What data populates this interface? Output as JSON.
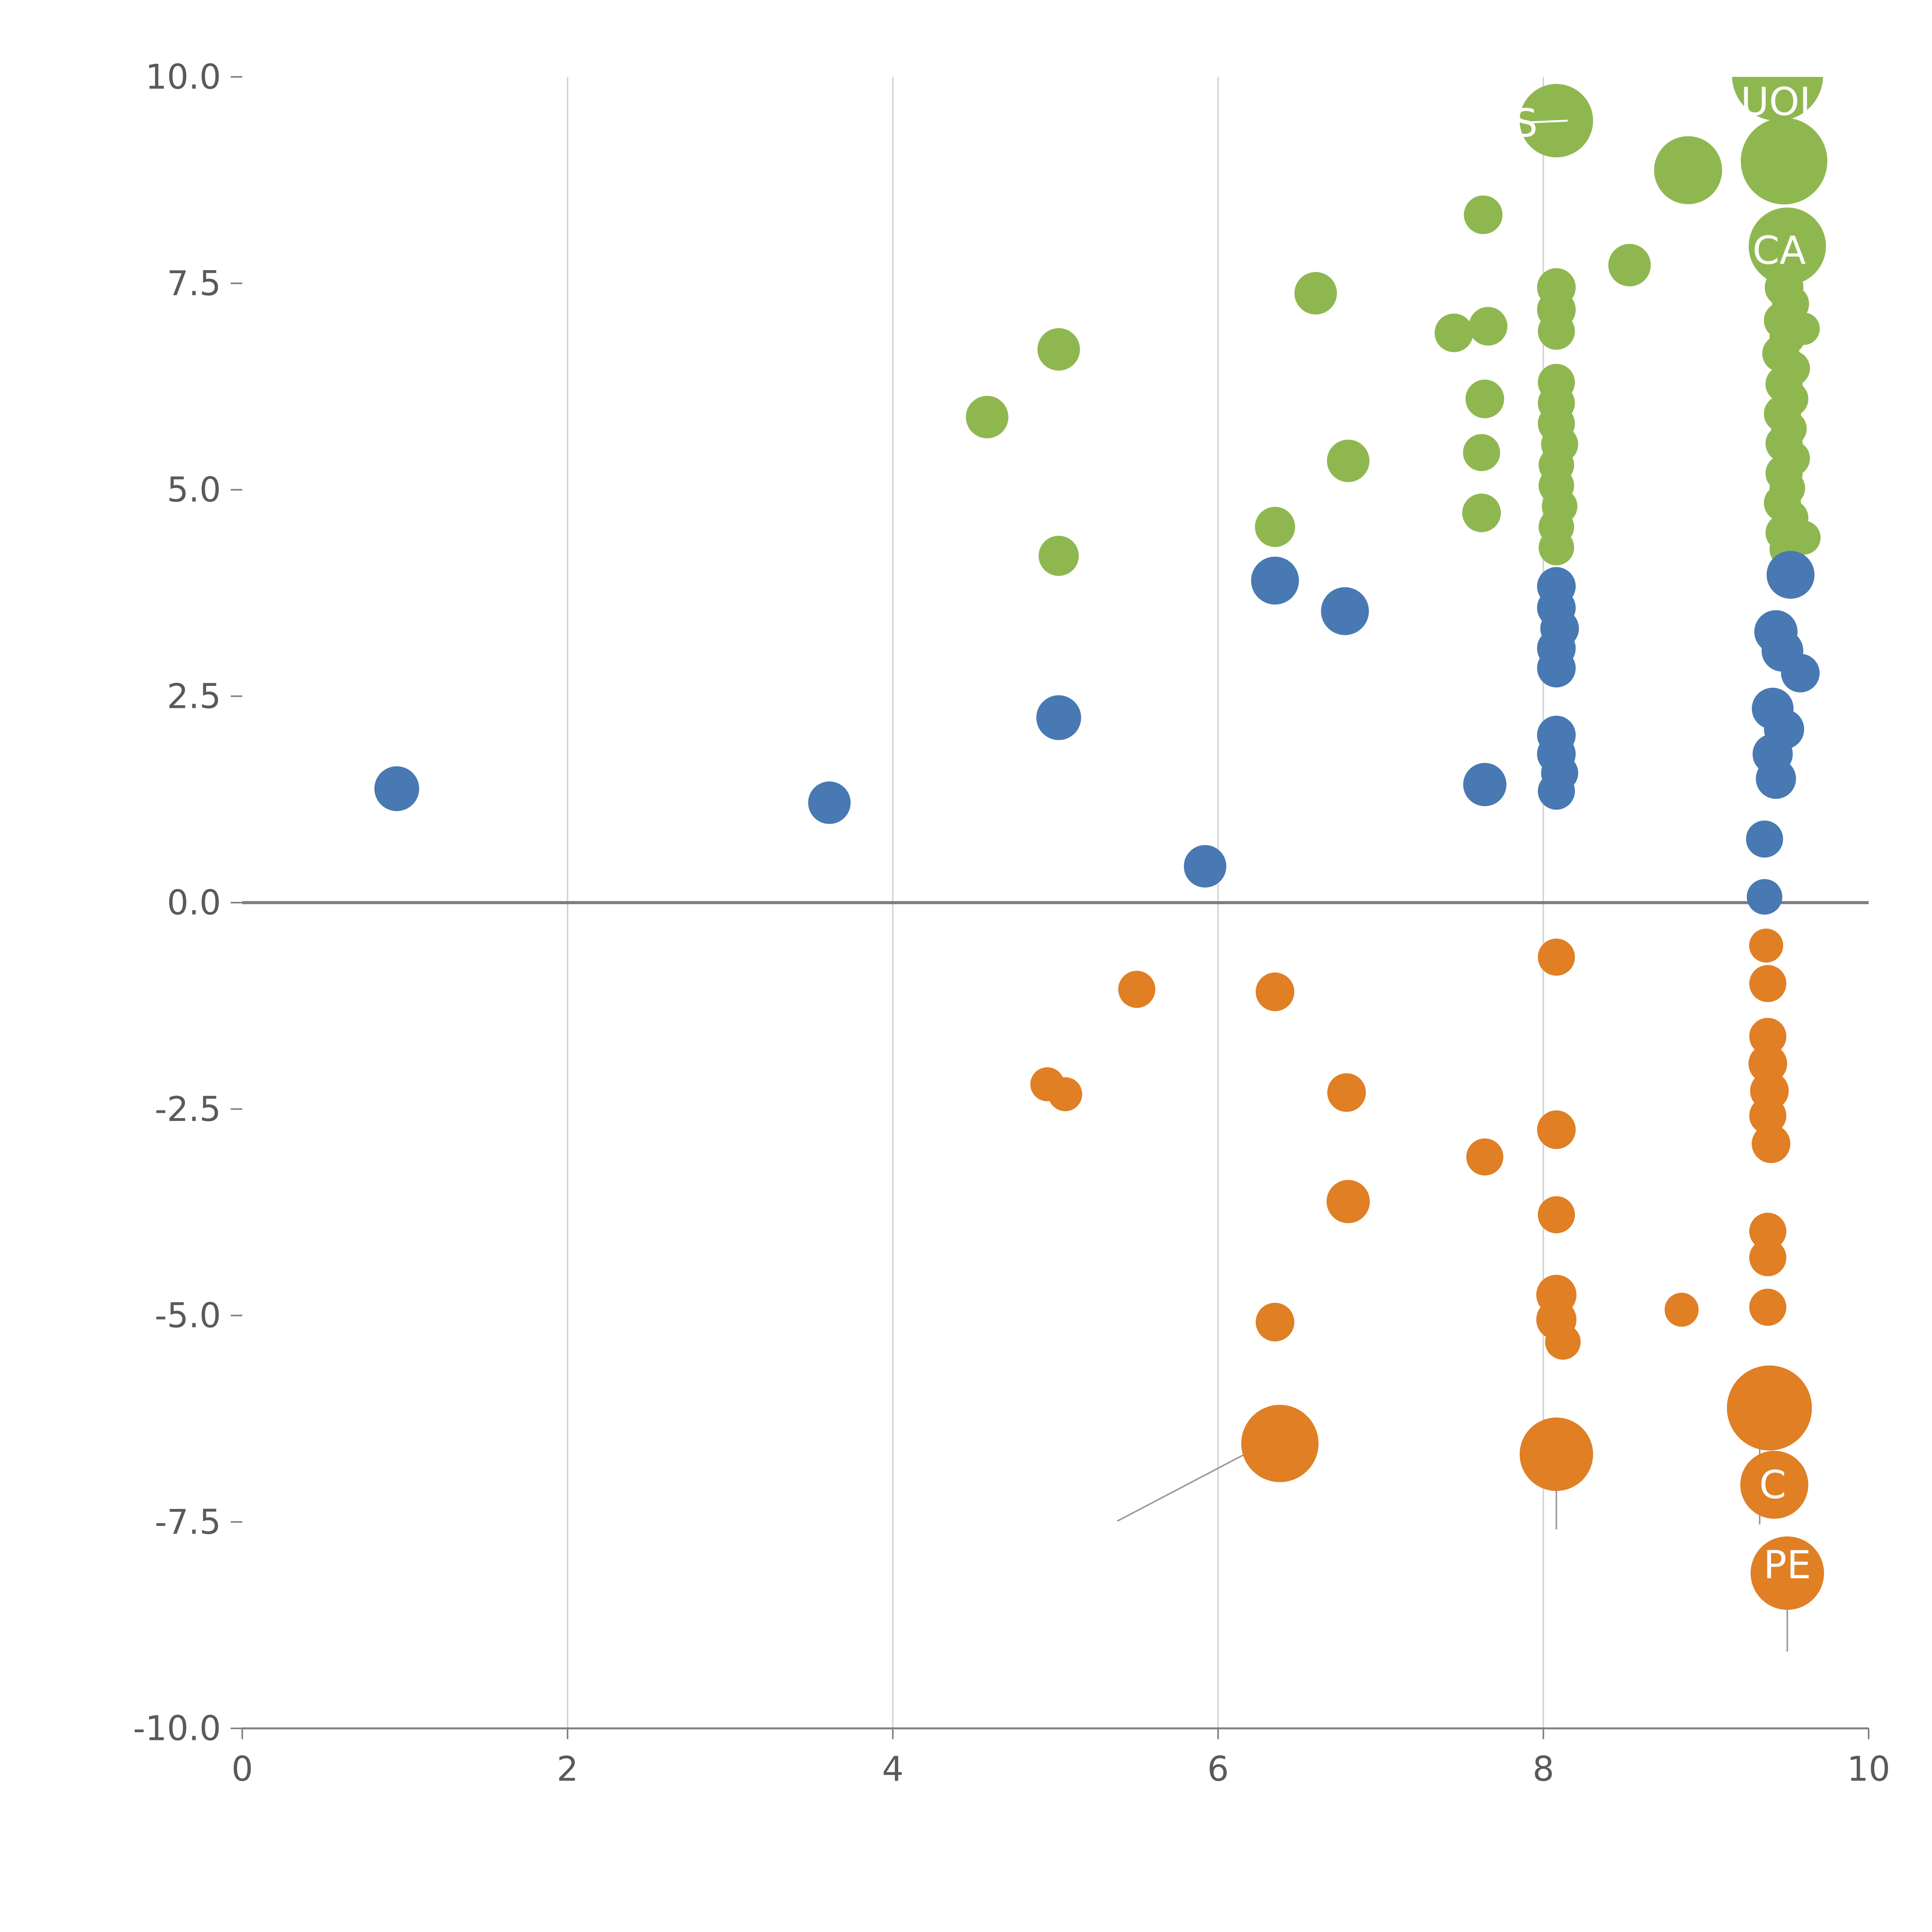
{
  "chart_data": {
    "type": "scatter",
    "title": "",
    "xlabel": "",
    "ylabel": "",
    "xlim": [
      0,
      10
    ],
    "ylim": [
      -10,
      10
    ],
    "grid": "vertical-only",
    "legend": null,
    "x_ticks": [
      {
        "v": 0,
        "label": "0"
      },
      {
        "v": 2,
        "label": "2"
      },
      {
        "v": 4,
        "label": "4"
      },
      {
        "v": 6,
        "label": "6"
      },
      {
        "v": 8,
        "label": "8"
      },
      {
        "v": 10,
        "label": "10"
      }
    ],
    "y_ticks": [
      {
        "v": -10.0,
        "label": "-10.0"
      },
      {
        "v": -7.5,
        "label": "-7.5"
      },
      {
        "v": -5.0,
        "label": "-5.0"
      },
      {
        "v": -2.5,
        "label": "-2.5"
      },
      {
        "v": 0.0,
        "label": "0.0"
      },
      {
        "v": 2.5,
        "label": "2.5"
      },
      {
        "v": 5.0,
        "label": "5.0"
      },
      {
        "v": 7.5,
        "label": "7.5"
      },
      {
        "v": 10.0,
        "label": "10.0"
      }
    ],
    "x_gridlines": [
      2,
      4,
      6,
      8
    ],
    "zero_line_y": 0,
    "colors": {
      "green": "#8fb750",
      "blue": "#4879b2",
      "orange": "#e07f24",
      "gridline": "#d0d0d0",
      "axis": "#7f7f7f",
      "zero_line": "#7f7f7f",
      "tick_text": "#5a5a5a",
      "leader_line": "#9a9a9a",
      "point_label": "#ffffff"
    },
    "point_format": [
      "x",
      "y",
      "radius_px"
    ],
    "series": [
      {
        "name": "series-green",
        "color": "#8fb750",
        "points": [
          [
            8.08,
            9.47,
            95
          ],
          [
            9.44,
            10.02,
            118
          ],
          [
            9.48,
            8.98,
            112
          ],
          [
            8.89,
            8.87,
            88
          ],
          [
            7.63,
            8.33,
            50
          ],
          [
            9.5,
            7.95,
            100
          ],
          [
            8.53,
            7.72,
            55
          ],
          [
            6.6,
            7.38,
            55
          ],
          [
            8.08,
            7.45,
            50
          ],
          [
            8.08,
            7.18,
            50
          ],
          [
            8.08,
            6.92,
            48
          ],
          [
            7.45,
            6.9,
            50
          ],
          [
            7.66,
            6.98,
            50
          ],
          [
            5.02,
            6.7,
            55
          ],
          [
            4.58,
            5.88,
            55
          ],
          [
            7.64,
            6.1,
            50
          ],
          [
            7.62,
            5.45,
            48
          ],
          [
            6.8,
            5.35,
            55
          ],
          [
            5.02,
            4.2,
            52
          ],
          [
            6.35,
            4.55,
            52
          ],
          [
            7.62,
            4.72,
            50
          ],
          [
            8.08,
            6.3,
            48
          ],
          [
            8.08,
            6.05,
            48
          ],
          [
            8.08,
            5.8,
            48
          ],
          [
            8.1,
            5.55,
            48
          ],
          [
            8.08,
            5.3,
            46
          ],
          [
            8.08,
            5.05,
            46
          ],
          [
            8.1,
            4.8,
            46
          ],
          [
            8.08,
            4.55,
            46
          ],
          [
            8.08,
            4.3,
            46
          ],
          [
            9.48,
            7.45,
            50
          ],
          [
            9.52,
            7.25,
            48
          ],
          [
            9.47,
            7.05,
            48
          ],
          [
            9.6,
            6.95,
            42
          ],
          [
            9.5,
            6.85,
            46
          ],
          [
            9.46,
            6.65,
            48
          ],
          [
            9.53,
            6.47,
            46
          ],
          [
            9.48,
            6.28,
            48
          ],
          [
            9.52,
            6.1,
            46
          ],
          [
            9.47,
            5.92,
            48
          ],
          [
            9.51,
            5.74,
            46
          ],
          [
            9.48,
            5.56,
            48
          ],
          [
            9.53,
            5.38,
            46
          ],
          [
            9.48,
            5.2,
            48
          ],
          [
            9.5,
            5.02,
            46
          ],
          [
            9.47,
            4.84,
            48
          ],
          [
            9.52,
            4.66,
            46
          ],
          [
            9.48,
            4.48,
            48
          ],
          [
            9.6,
            4.42,
            44
          ],
          [
            9.5,
            4.28,
            46
          ]
        ]
      },
      {
        "name": "series-blue",
        "color": "#4879b2",
        "points": [
          [
            6.35,
            3.9,
            62
          ],
          [
            6.78,
            3.53,
            62
          ],
          [
            8.08,
            3.83,
            50
          ],
          [
            8.08,
            3.57,
            50
          ],
          [
            8.1,
            3.32,
            50
          ],
          [
            8.08,
            3.08,
            50
          ],
          [
            8.08,
            2.84,
            50
          ],
          [
            9.52,
            3.97,
            62
          ],
          [
            9.43,
            3.28,
            56
          ],
          [
            9.47,
            3.05,
            54
          ],
          [
            9.58,
            2.78,
            50
          ],
          [
            9.41,
            2.35,
            54
          ],
          [
            9.48,
            2.1,
            52
          ],
          [
            9.41,
            1.8,
            52
          ],
          [
            9.43,
            1.5,
            52
          ],
          [
            5.02,
            2.24,
            58
          ],
          [
            8.08,
            2.03,
            50
          ],
          [
            8.08,
            1.8,
            50
          ],
          [
            8.1,
            1.57,
            48
          ],
          [
            8.08,
            1.35,
            48
          ],
          [
            7.64,
            1.43,
            56
          ],
          [
            0.95,
            1.38,
            58
          ],
          [
            3.61,
            1.21,
            55
          ],
          [
            5.92,
            0.44,
            55
          ],
          [
            9.36,
            0.77,
            48
          ],
          [
            9.36,
            0.07,
            46
          ]
        ]
      },
      {
        "name": "series-orange",
        "color": "#e07f24",
        "points": [
          [
            8.08,
            -0.66,
            48
          ],
          [
            9.37,
            -0.52,
            44
          ],
          [
            9.38,
            -0.98,
            48
          ],
          [
            5.5,
            -1.05,
            48
          ],
          [
            6.35,
            -1.08,
            50
          ],
          [
            9.38,
            -1.62,
            48
          ],
          [
            9.38,
            -1.95,
            50
          ],
          [
            9.39,
            -2.28,
            50
          ],
          [
            9.38,
            -2.58,
            48
          ],
          [
            9.4,
            -2.92,
            50
          ],
          [
            4.95,
            -2.2,
            44
          ],
          [
            5.06,
            -2.32,
            44
          ],
          [
            6.79,
            -2.3,
            50
          ],
          [
            8.08,
            -2.75,
            50
          ],
          [
            7.64,
            -3.08,
            48
          ],
          [
            6.8,
            -3.62,
            56
          ],
          [
            8.08,
            -3.78,
            48
          ],
          [
            9.38,
            -3.98,
            48
          ],
          [
            9.38,
            -4.3,
            48
          ],
          [
            8.08,
            -4.75,
            52
          ],
          [
            8.08,
            -5.05,
            52
          ],
          [
            8.12,
            -5.32,
            46
          ],
          [
            8.85,
            -4.93,
            44
          ],
          [
            9.38,
            -4.9,
            48
          ],
          [
            6.35,
            -5.08,
            50
          ],
          [
            9.39,
            -6.12,
            110
          ],
          [
            6.38,
            -6.55,
            100
          ],
          [
            8.08,
            -6.68,
            95
          ],
          [
            9.42,
            -7.05,
            88
          ],
          [
            9.5,
            -8.12,
            95
          ]
        ]
      }
    ],
    "point_labels": [
      {
        "text": "UOL",
        "x": 9.46,
        "y": 9.7
      },
      {
        "text": "S",
        "x": 7.89,
        "y": 9.44
      },
      {
        "text": "CA",
        "x": 9.45,
        "y": 7.9
      },
      {
        "text": "C",
        "x": 9.41,
        "y": -7.05
      },
      {
        "text": "PE",
        "x": 9.5,
        "y": -8.02
      }
    ],
    "leader_lines": [
      {
        "x1": 9.43,
        "y1": 9.5,
        "x2": 9.46,
        "y2": 9.05,
        "color": "#9a9a9a"
      },
      {
        "x1": 8.72,
        "y1": 9.03,
        "x2": 8.97,
        "y2": 8.99,
        "color": "#9a9a9a"
      },
      {
        "x1": 7.92,
        "y1": 9.45,
        "x2": 8.15,
        "y2": 9.47,
        "color": "#ffffff"
      },
      {
        "x1": 5.38,
        "y1": -7.49,
        "x2": 6.3,
        "y2": -6.54,
        "color": "#9a9a9a"
      },
      {
        "x1": 8.08,
        "y1": -6.73,
        "x2": 8.08,
        "y2": -7.59,
        "color": "#9a9a9a"
      },
      {
        "x1": 9.33,
        "y1": -6.21,
        "x2": 9.33,
        "y2": -7.53,
        "color": "#9a9a9a"
      },
      {
        "x1": 9.5,
        "y1": -8.39,
        "x2": 9.5,
        "y2": -9.07,
        "color": "#9a9a9a"
      }
    ]
  }
}
